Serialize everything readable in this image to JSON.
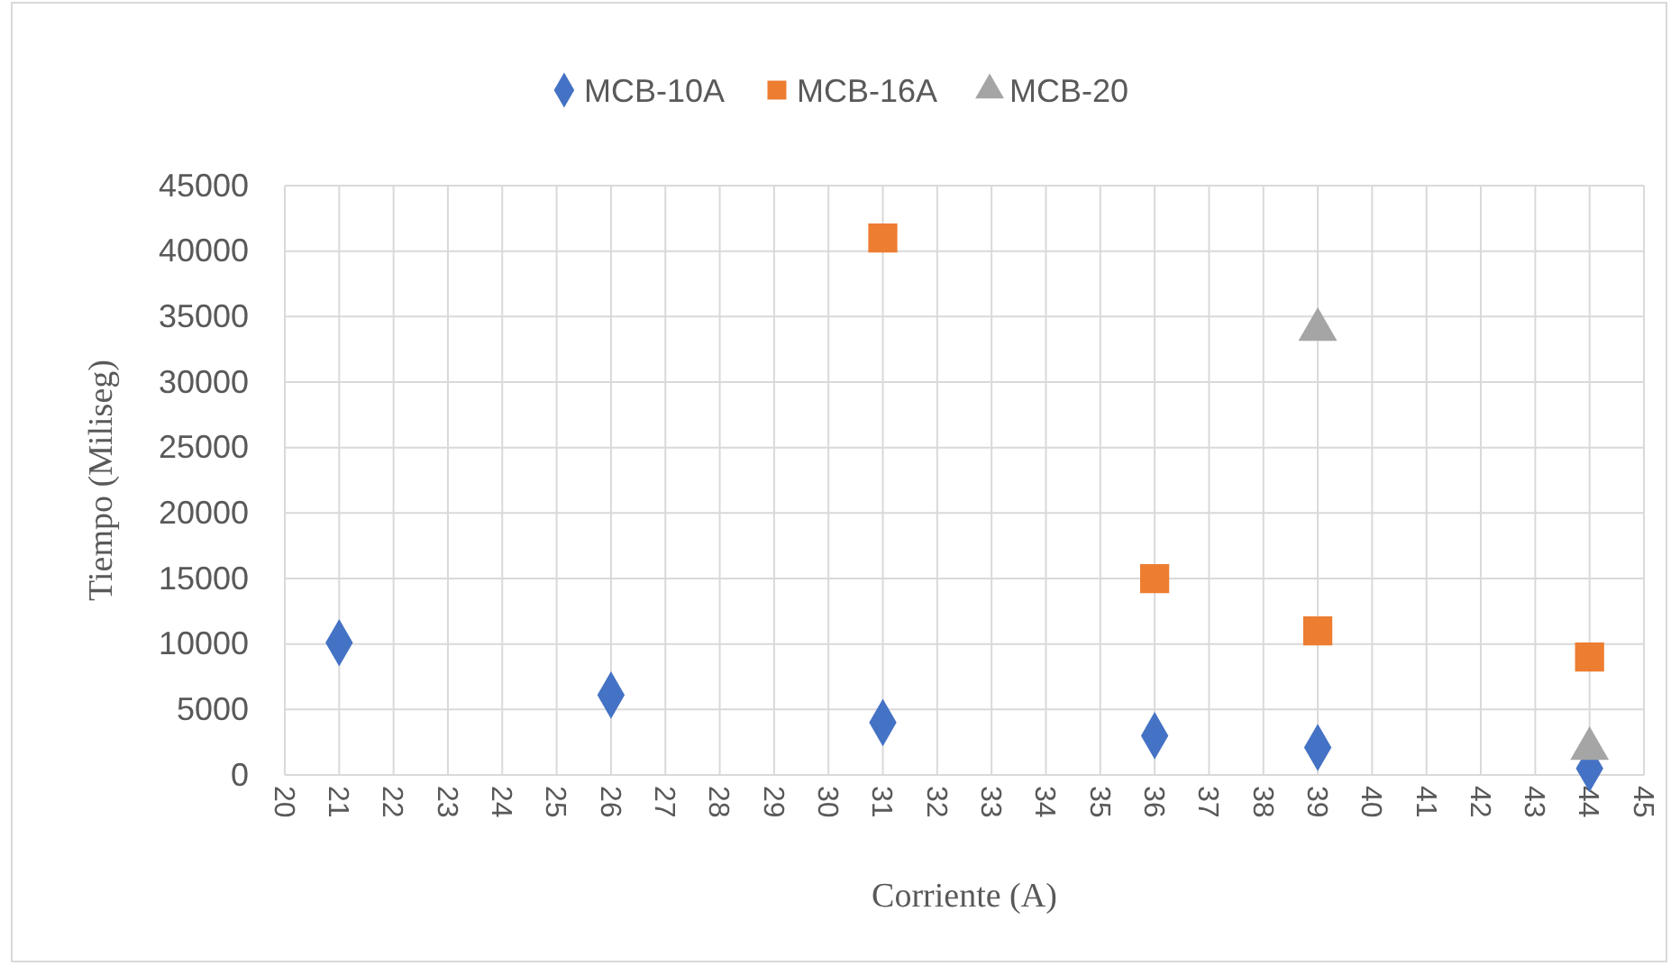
{
  "chart_data": {
    "type": "scatter",
    "xlabel": "Corriente (A)",
    "ylabel": "Tiempo (Miliseg)",
    "xlim": [
      20,
      45
    ],
    "xticks": [
      20,
      21,
      22,
      23,
      24,
      25,
      26,
      27,
      28,
      29,
      30,
      31,
      32,
      33,
      34,
      35,
      36,
      37,
      38,
      39,
      40,
      41,
      42,
      43,
      44,
      45
    ],
    "ylim": [
      0,
      45000
    ],
    "yticks": [
      0,
      5000,
      10000,
      15000,
      20000,
      25000,
      30000,
      35000,
      40000,
      45000
    ],
    "grid": true,
    "legend": "top",
    "series": [
      {
        "name": "MCB-10A",
        "color": "#4472c4",
        "marker": "diamond",
        "x": [
          21,
          26,
          31,
          36,
          39,
          44
        ],
        "values": [
          10100,
          6100,
          4000,
          3000,
          2100,
          500
        ]
      },
      {
        "name": "MCB-16A",
        "color": "#ed7d31",
        "marker": "square",
        "x": [
          31,
          36,
          39,
          44
        ],
        "values": [
          41000,
          15000,
          11000,
          9000
        ]
      },
      {
        "name": "MCB-20",
        "color": "#a5a5a5",
        "marker": "triangle",
        "x": [
          39,
          44
        ],
        "values": [
          34000,
          2000
        ]
      }
    ]
  }
}
